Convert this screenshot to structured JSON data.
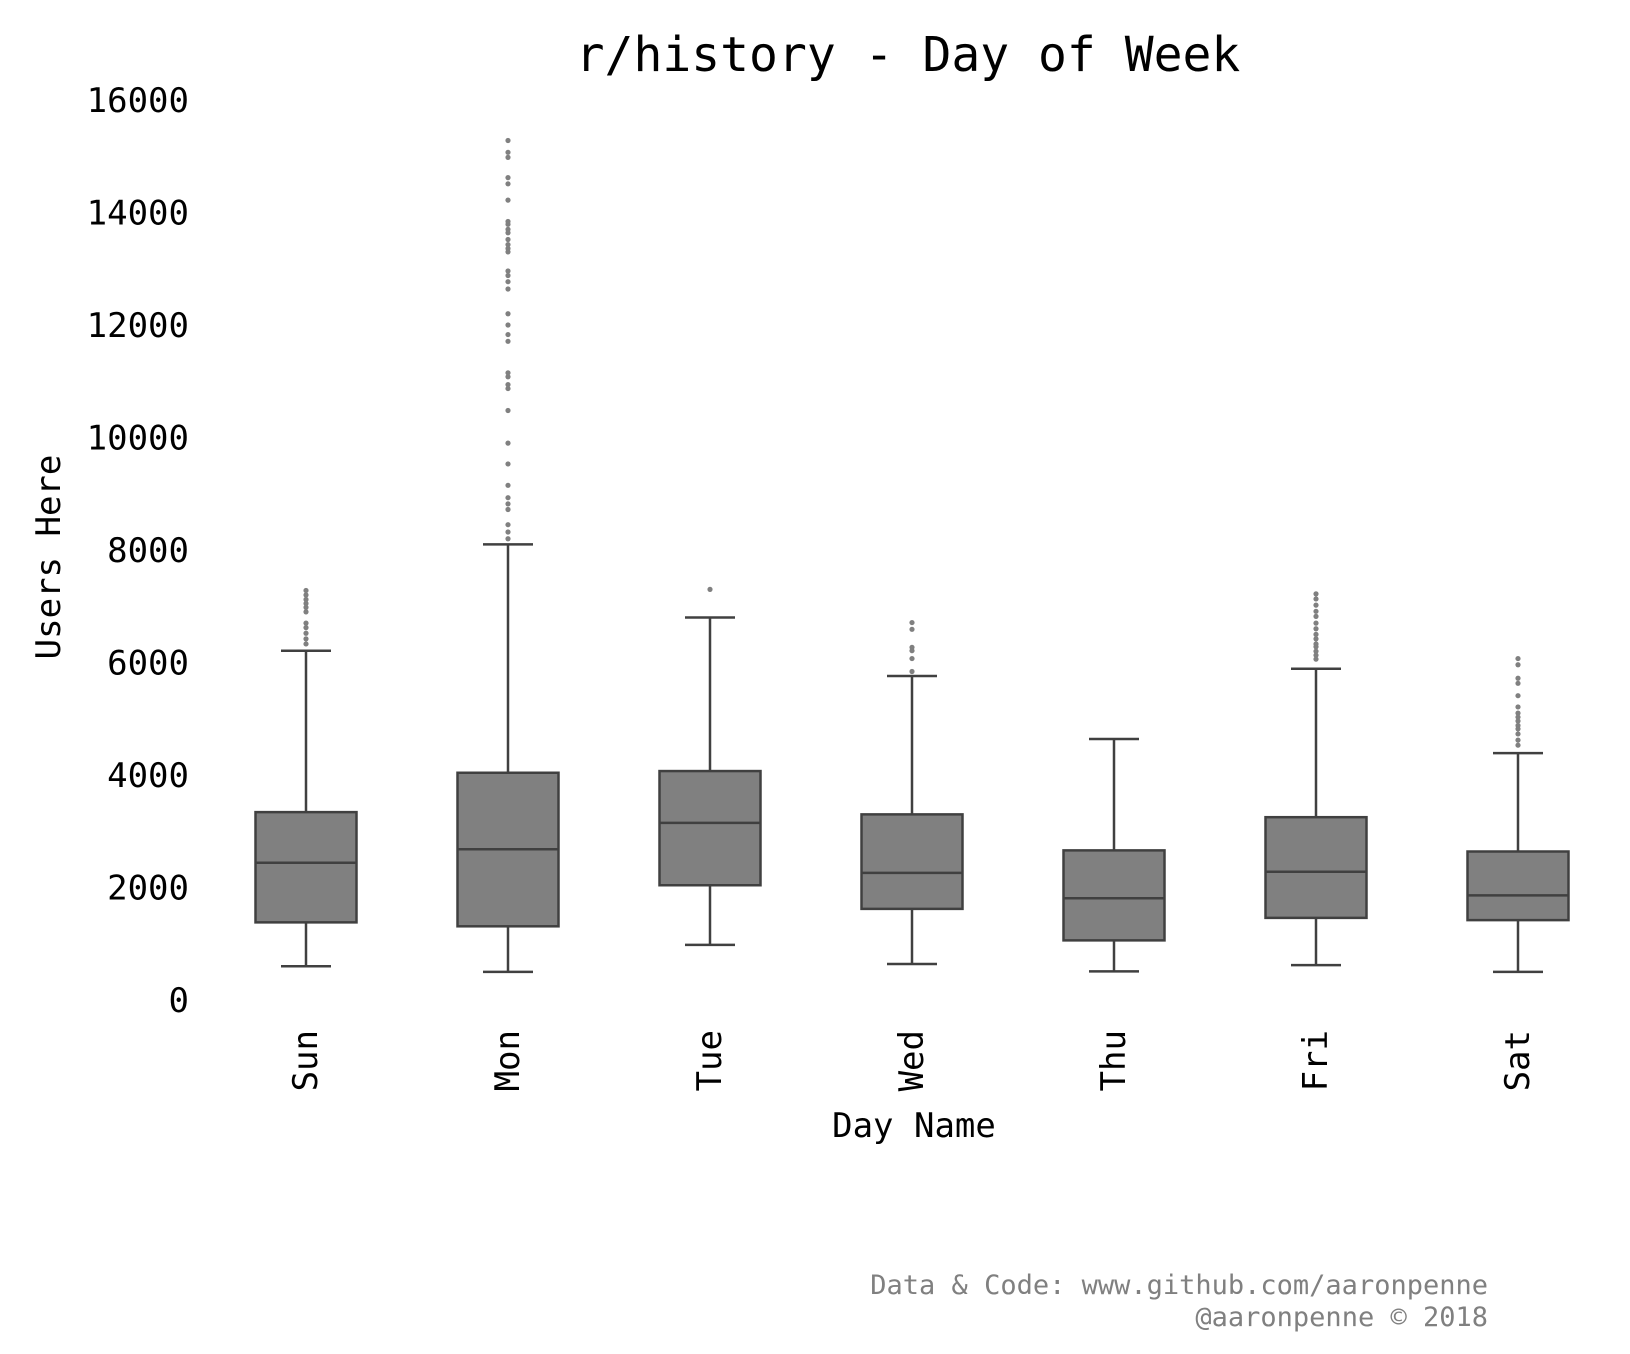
{
  "chart_data": {
    "type": "box",
    "title": "r/history - Day of Week",
    "xlabel": "Day Name",
    "ylabel": "Users Here",
    "ylim": [
      0,
      16000
    ],
    "yticks": [
      0,
      2000,
      4000,
      6000,
      8000,
      10000,
      12000,
      14000,
      16000
    ],
    "ytick_labels": [
      "0",
      "2000",
      "4000",
      "6000",
      "8000",
      "10000",
      "12000",
      "14000",
      "16000"
    ],
    "categories": [
      "Sun",
      "Mon",
      "Tue",
      "Wed",
      "Thu",
      "Fri",
      "Sat"
    ],
    "grid": false,
    "legend": "none",
    "colors": {
      "box_fill": "#808080",
      "box_line": "#404040",
      "outlier": "#808080"
    },
    "boxes": [
      {
        "day": "Sun",
        "whisker_low": 600,
        "q1": 1380,
        "median": 2440,
        "q3": 3340,
        "whisker_high": 6210,
        "outliers": [
          6330,
          6420,
          6520,
          6620,
          6700,
          6900,
          6980,
          7050,
          7120,
          7200,
          7280
        ]
      },
      {
        "day": "Mon",
        "whisker_low": 500,
        "q1": 1310,
        "median": 2680,
        "q3": 4040,
        "whisker_high": 8100,
        "outliers": [
          8200,
          8320,
          8450,
          8720,
          8820,
          8930,
          9150,
          9530,
          9900,
          10480,
          10870,
          10940,
          11080,
          11150,
          11710,
          11830,
          12000,
          12200,
          12640,
          12770,
          12880,
          12960,
          13300,
          13360,
          13430,
          13520,
          13640,
          13700,
          13790,
          13840,
          14220,
          14510,
          14620,
          14980,
          15070,
          15280
        ]
      },
      {
        "day": "Tue",
        "whisker_low": 980,
        "q1": 2040,
        "median": 3150,
        "q3": 4070,
        "whisker_high": 6800,
        "outliers": [
          7300
        ]
      },
      {
        "day": "Wed",
        "whisker_low": 640,
        "q1": 1620,
        "median": 2260,
        "q3": 3300,
        "whisker_high": 5760,
        "outliers": [
          5840,
          6070,
          6210,
          6270,
          6590,
          6710
        ]
      },
      {
        "day": "Thu",
        "whisker_low": 510,
        "q1": 1060,
        "median": 1810,
        "q3": 2660,
        "whisker_high": 4640,
        "outliers": []
      },
      {
        "day": "Fri",
        "whisker_low": 620,
        "q1": 1460,
        "median": 2280,
        "q3": 3250,
        "whisker_high": 5890,
        "outliers": [
          6060,
          6130,
          6200,
          6280,
          6330,
          6420,
          6500,
          6600,
          6700,
          6820,
          6910,
          7020,
          7130,
          7220
        ]
      },
      {
        "day": "Sat",
        "whisker_low": 500,
        "q1": 1420,
        "median": 1860,
        "q3": 2640,
        "whisker_high": 4390,
        "outliers": [
          4530,
          4620,
          4730,
          4820,
          4880,
          4960,
          5030,
          5100,
          5210,
          5410,
          5630,
          5720,
          5960,
          6070
        ]
      }
    ]
  },
  "credits": {
    "line1": "Data & Code: www.github.com/aaronpenne",
    "line2": "@aaronpenne © 2018"
  }
}
